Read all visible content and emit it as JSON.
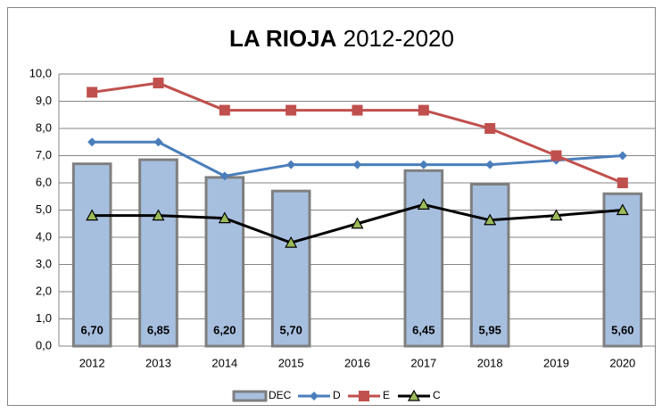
{
  "chart_data": {
    "type": "bar-line",
    "title": "LA RIOJA",
    "title_years": "2012-2020",
    "categories": [
      "2012",
      "2013",
      "2014",
      "2015",
      "2016",
      "2017",
      "2018",
      "2019",
      "2020"
    ],
    "series": [
      {
        "name": "DEC",
        "type": "bar",
        "color": "#a7bfdf",
        "values": [
          6.7,
          6.85,
          6.2,
          5.7,
          null,
          6.45,
          5.95,
          null,
          5.6
        ],
        "value_labels": [
          "6,70",
          "6,85",
          "6,20",
          "5,70",
          null,
          "6,45",
          "5,95",
          null,
          "5,60"
        ]
      },
      {
        "name": "D",
        "type": "line",
        "marker": "diamond",
        "color": "#4a7ebb",
        "values": [
          7.5,
          7.5,
          6.25,
          6.67,
          6.67,
          6.67,
          6.67,
          6.83,
          7.0
        ]
      },
      {
        "name": "E",
        "type": "line",
        "marker": "square",
        "color": "#c0504d",
        "values": [
          9.33,
          9.67,
          8.67,
          8.67,
          8.67,
          8.67,
          8.0,
          7.0,
          6.0
        ]
      },
      {
        "name": "C",
        "type": "line",
        "marker": "triangle",
        "color": "#000000",
        "values": [
          4.8,
          4.8,
          4.7,
          3.8,
          4.5,
          5.2,
          4.63,
          4.8,
          5.0
        ]
      }
    ],
    "ylim": [
      0,
      10
    ],
    "yticks": [
      {
        "value": 0,
        "label": "0,0"
      },
      {
        "value": 1,
        "label": "1,0"
      },
      {
        "value": 2,
        "label": "2,0"
      },
      {
        "value": 3,
        "label": "3,0"
      },
      {
        "value": 4,
        "label": "4,0"
      },
      {
        "value": 5,
        "label": "5,0"
      },
      {
        "value": 6,
        "label": "6,0"
      },
      {
        "value": 7,
        "label": "7,0"
      },
      {
        "value": 8,
        "label": "8,0"
      },
      {
        "value": 9,
        "label": "9,0"
      },
      {
        "value": 10,
        "label": "10,0"
      }
    ],
    "grid": true,
    "legend": "bottom"
  }
}
